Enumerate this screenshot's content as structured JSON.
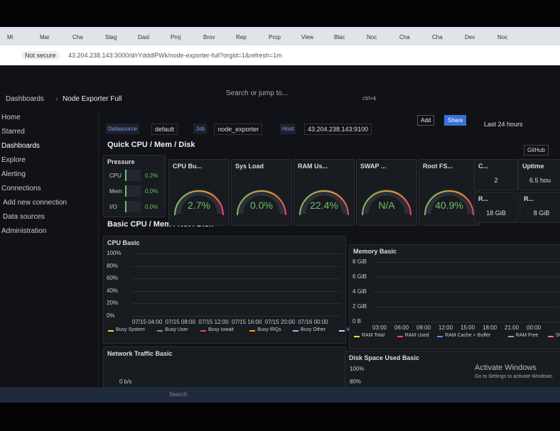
{
  "browser": {
    "tabs": [
      "Mi",
      "Mar",
      "Cha",
      "Stag",
      "Dasl",
      "Proj",
      "Brov",
      "Rep",
      "Prop",
      "View",
      "Blac",
      "Noc",
      "Cha",
      "Cha",
      "Dev",
      "Noc"
    ],
    "security": "Not secure",
    "url": "43.204.238.143:3000/d/rYdddlPWk/node-exporter-full?orgId=1&refresh=1m"
  },
  "topbar": {
    "breadcrumb": [
      "Dashboards",
      "Node Exporter Full"
    ],
    "search": "Search or jump to...",
    "shortcut": "ctrl+k"
  },
  "sidebar": {
    "items": [
      "Home",
      "Starred",
      "Dashboards",
      "Explore",
      "Alerting",
      "Connections",
      "Add new connection",
      "Data sources",
      "Administration"
    ]
  },
  "toolbar": {
    "add": "Add",
    "share": "Share",
    "time_range": "Last 24 hours"
  },
  "variables": [
    {
      "label": "Datasource",
      "value": "default"
    },
    {
      "label": "Job",
      "value": "node_exporter"
    },
    {
      "label": "Host",
      "value": "43.204.238.143:9100"
    }
  ],
  "github": "GitHub",
  "rows": [
    "Quick CPU / Mem / Disk",
    "Basic CPU / Mem / Net / Disk"
  ],
  "pressure": {
    "title": "Pressure",
    "items": [
      {
        "label": "CPU",
        "value": "0.2%"
      },
      {
        "label": "Mem",
        "value": "0.0%"
      },
      {
        "label": "I/O",
        "value": "0.0%"
      }
    ]
  },
  "gauges": [
    {
      "title": "CPU Bu...",
      "value": "2.7%"
    },
    {
      "title": "Sys Load",
      "value": "0.0%"
    },
    {
      "title": "RAM Us...",
      "value": "22.4%"
    },
    {
      "title": "SWAP ...",
      "value": "N/A"
    },
    {
      "title": "Root FS...",
      "value": "40.9%"
    }
  ],
  "stats": [
    {
      "title": "C...",
      "value": "2"
    },
    {
      "title": "Uptime",
      "value": "6.5 hou"
    },
    {
      "title": "R...",
      "value": "18 GiB"
    },
    {
      "title": "R...",
      "value": "8 GiB"
    }
  ],
  "cpu_basic": {
    "title": "CPU Basic",
    "yticks": [
      "100%",
      "80%",
      "60%",
      "40%",
      "20%",
      "0%"
    ],
    "xticks": [
      "07/15 04:00",
      "07/15 08:00",
      "07/15 12:00",
      "07/15 16:00",
      "07/15 20:00",
      "07/16 00:00"
    ],
    "legend": [
      {
        "name": "Busy System",
        "color": "#fade2a"
      },
      {
        "name": "Busy User",
        "color": "#5794f2"
      },
      {
        "name": "Busy Iowait",
        "color": "#f2495c"
      },
      {
        "name": "Busy IRQs",
        "color": "#ff9830"
      },
      {
        "name": "Busy Other",
        "color": "#8ab8ff"
      },
      {
        "name": "Idle",
        "color": "#c0d8ff"
      }
    ]
  },
  "memory_basic": {
    "title": "Memory Basic",
    "yticks": [
      "8 GiB",
      "6 GiB",
      "4 GiB",
      "2 GiB",
      "0 B"
    ],
    "xticks": [
      "03:00",
      "06:00",
      "09:00",
      "12:00",
      "15:00",
      "18:00",
      "21:00",
      "00:00"
    ],
    "legend": [
      {
        "name": "RAM Total",
        "color": "#fade2a"
      },
      {
        "name": "RAM Used",
        "color": "#f2495c"
      },
      {
        "name": "RAM Cache + Buffer",
        "color": "#5794f2"
      },
      {
        "name": "RAM Free",
        "color": "#73bf69"
      },
      {
        "name": "SWAP Used",
        "color": "#ff7383"
      }
    ]
  },
  "network_basic": {
    "title": "Network Traffic Basic",
    "ytick": "0 b/s"
  },
  "disk_basic": {
    "title": "Disk Space Used Basic",
    "yticks": [
      "100%",
      "80%"
    ]
  },
  "windows": {
    "watermark_title": "Activate Windows",
    "watermark_text": "Go to Settings to activate Windows.",
    "taskbar_search": "Search"
  }
}
